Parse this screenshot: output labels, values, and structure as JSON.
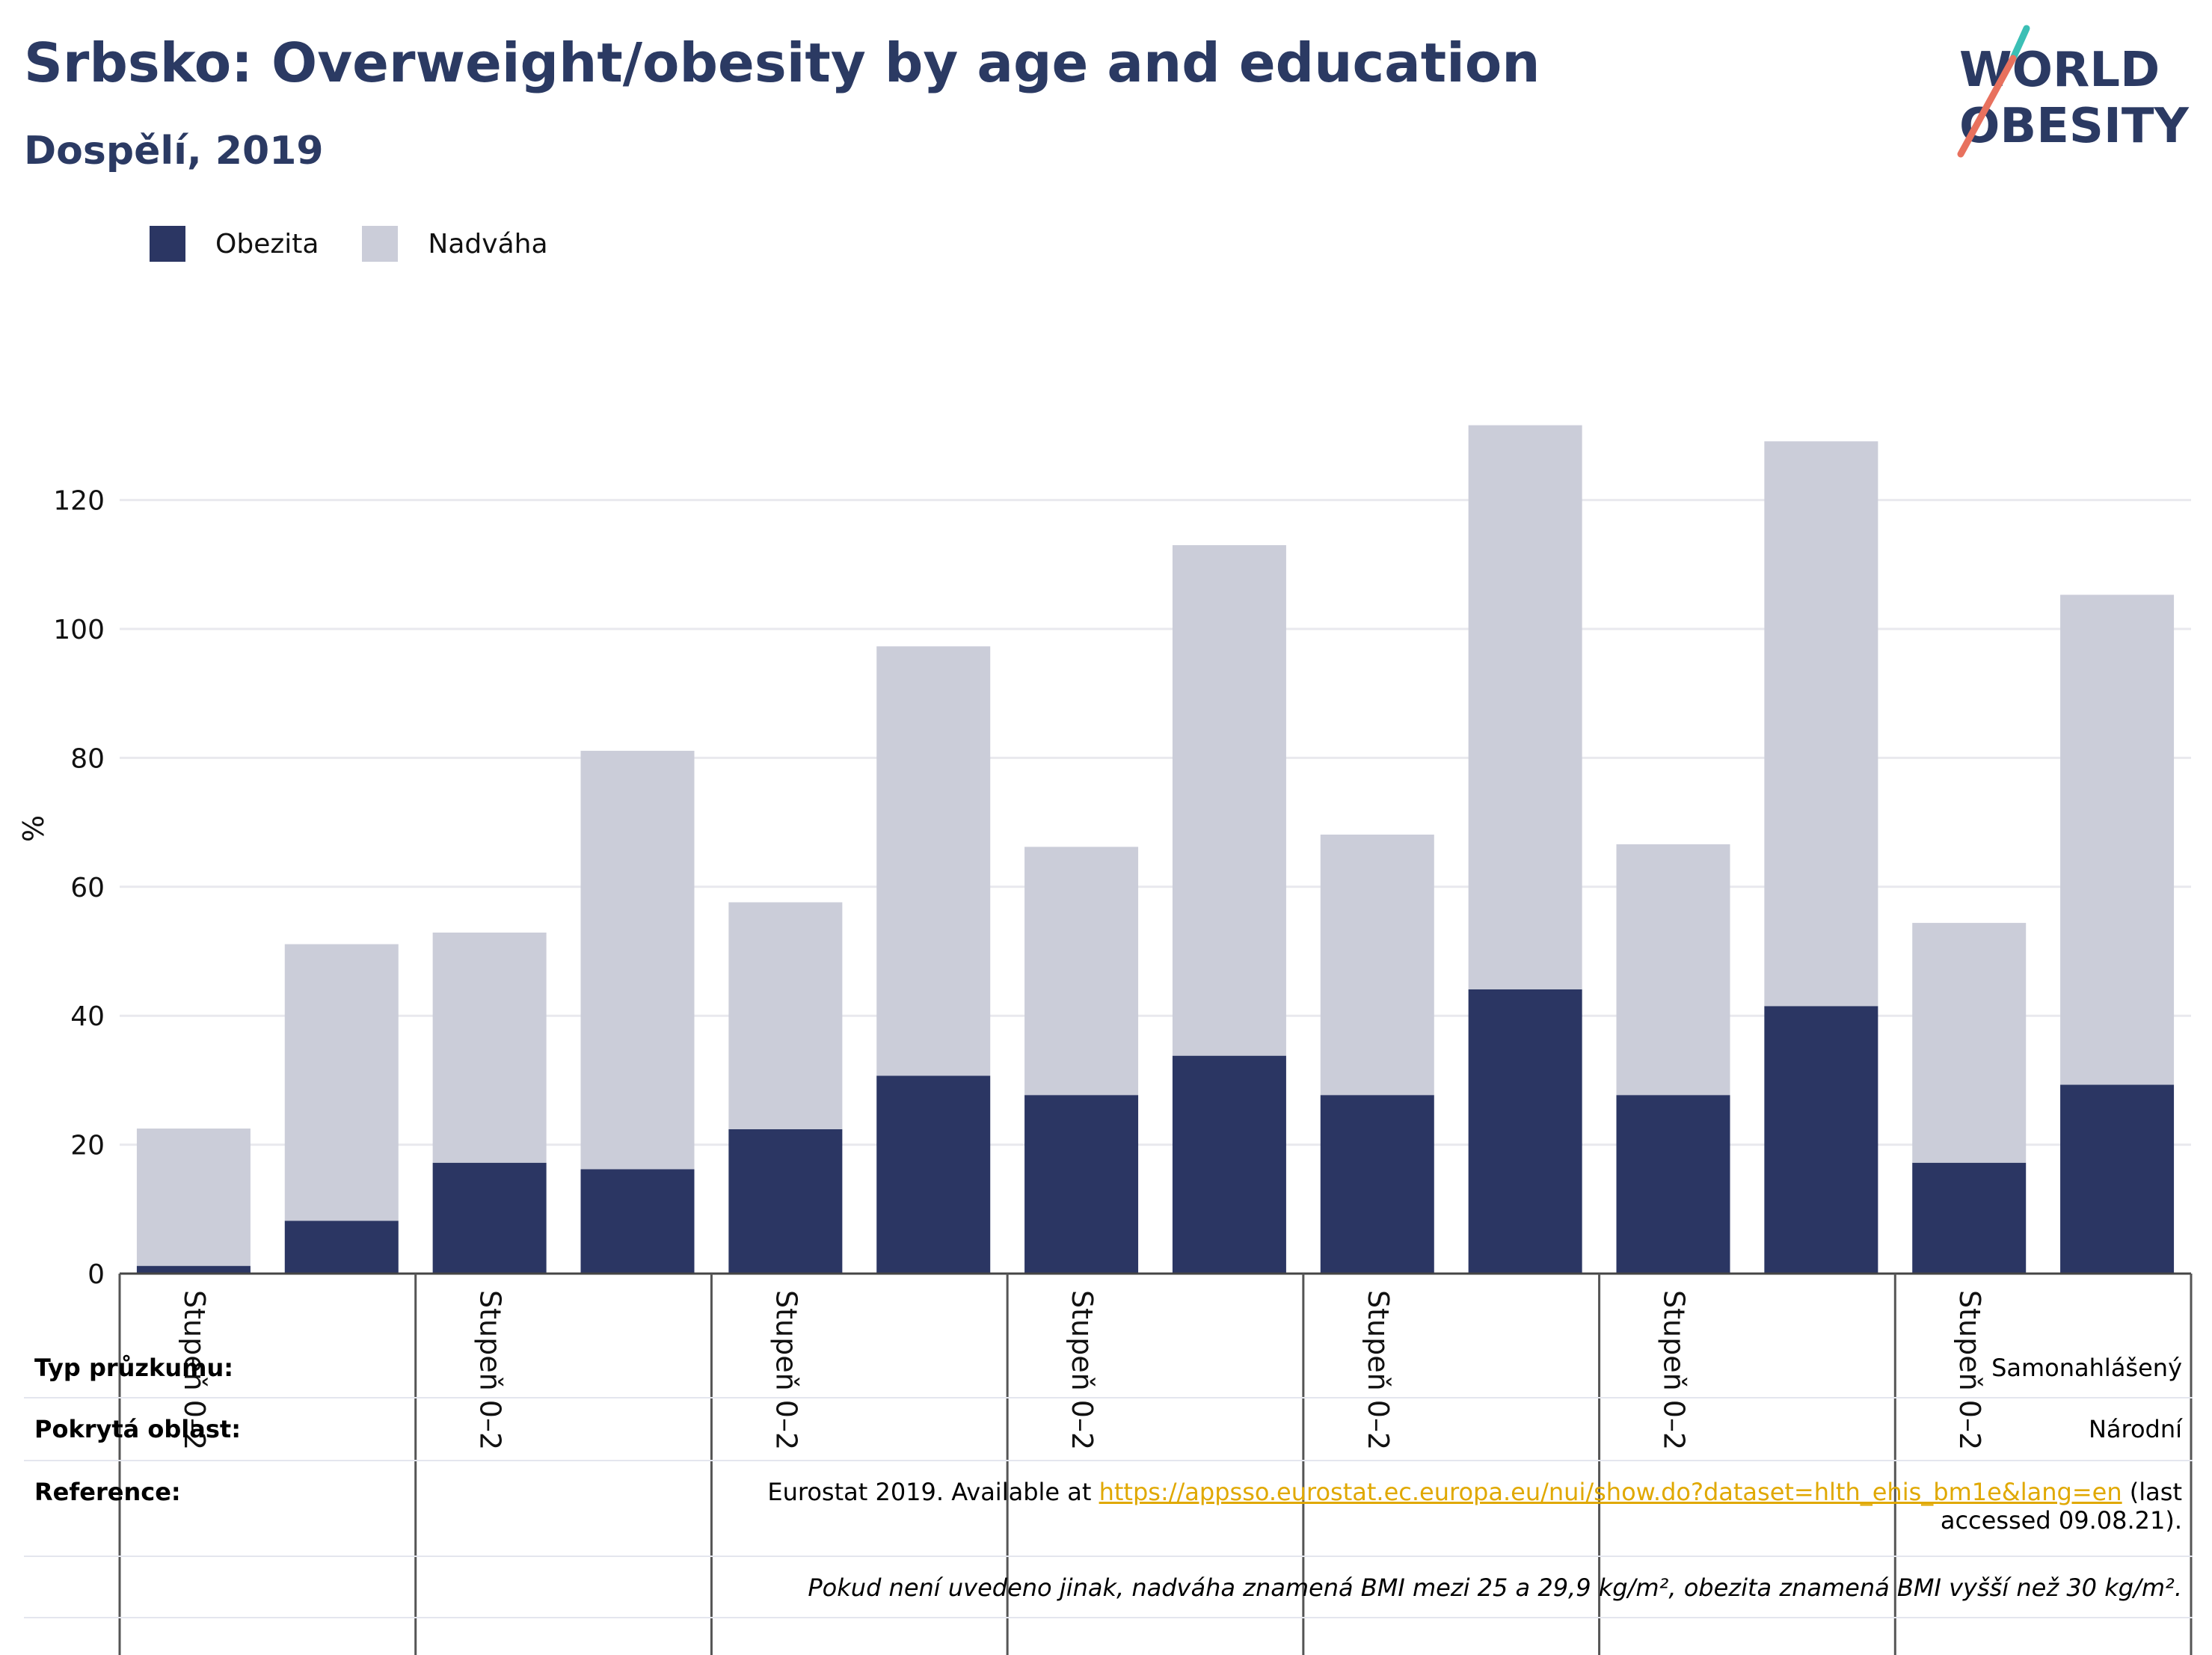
{
  "header": {
    "title": "Srbsko: Overweight/obesity by age and education",
    "subtitle": "Dospělí, 2019"
  },
  "logo": {
    "line1": "WORLD",
    "line2": "OBESITY",
    "colors": {
      "text": "#2b3a63",
      "teal": "#3bbfb5",
      "coral": "#e8715e"
    }
  },
  "colors": {
    "obesity": "#2b3663",
    "overweight": "#cbcdd9",
    "grid": "#e9e9ee",
    "axis": "#444444"
  },
  "chart_data": {
    "type": "bar",
    "stacked": true,
    "ylabel": "%",
    "ylim": [
      0,
      134
    ],
    "yticks": [
      0,
      20,
      40,
      60,
      80,
      100,
      120
    ],
    "legend": "top-left",
    "grid": true,
    "category_groups": [
      "Stupeň 0–2",
      "Stupeň 0–2",
      "Stupeň 0–2",
      "Stupeň 0–2",
      "Stupeň 0–2",
      "Stupeň 0–2",
      "Stupeň 0–2"
    ],
    "series": [
      {
        "name": "Obezita",
        "values": [
          1.2,
          8.2,
          17.2,
          16.2,
          22.4,
          30.7,
          27.7,
          33.8,
          27.7,
          44.1,
          27.7,
          41.5,
          17.2,
          29.3
        ]
      },
      {
        "name": "Nadváha",
        "values": [
          21.3,
          42.9,
          35.7,
          64.9,
          35.2,
          66.6,
          38.5,
          79.2,
          40.4,
          87.5,
          38.9,
          87.6,
          37.2,
          76.0
        ]
      }
    ]
  },
  "info": {
    "survey_type_label": "Typ průzkumu:",
    "survey_type_value": "Samonahlášený",
    "area_label": "Pokrytá oblast:",
    "area_value": "Národní",
    "reference_label": "Reference:",
    "reference_prefix": "Eurostat 2019. Available at ",
    "reference_link": "https://appsso.eurostat.ec.europa.eu/nui/show.do?dataset=hlth_ehis_bm1e&lang=en",
    "reference_suffix": " (last accessed 09.08.21).",
    "note": "Pokud není uvedeno jinak, nadváha znamená BMI mezi 25 a 29,9 kg/m², obezita znamená BMI vyšší než 30 kg/m²."
  }
}
